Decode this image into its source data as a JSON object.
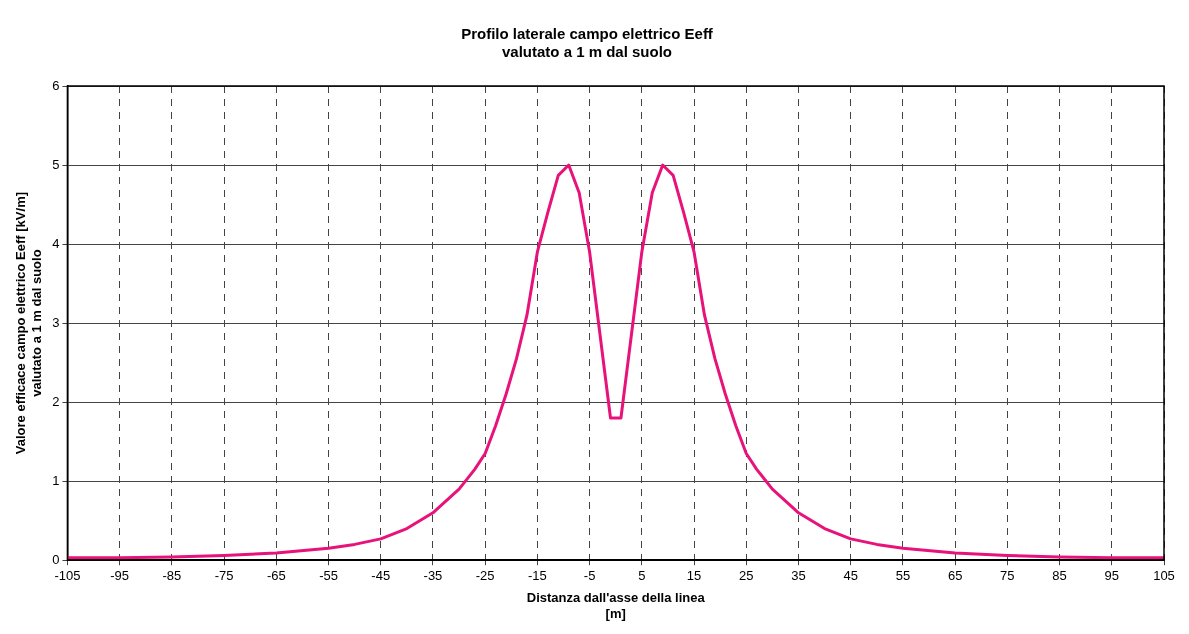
{
  "chart_data": {
    "type": "line",
    "title": "Profilo laterale campo elettrico Eeff\nvalutato a 1 m dal suolo",
    "xlabel": "Distanza dall'asse della linea\n[m]",
    "ylabel": "Valore efficace campo elettrico Eeff [kV/m]\nvalutato a 1 m dal suolo",
    "x": [
      -105,
      -95,
      -85,
      -75,
      -65,
      -55,
      -50,
      -45,
      -40,
      -35,
      -30,
      -27,
      -25,
      -23,
      -21,
      -19,
      -17,
      -15,
      -13,
      -11,
      -9,
      -7,
      -5,
      -1,
      1,
      5,
      7,
      9,
      11,
      13,
      15,
      17,
      19,
      21,
      23,
      25,
      27,
      30,
      35,
      40,
      45,
      50,
      55,
      65,
      75,
      85,
      95,
      105
    ],
    "series": [
      {
        "color": "#e8137a",
        "values": [
          0.03,
          0.03,
          0.04,
          0.06,
          0.09,
          0.15,
          0.2,
          0.27,
          0.4,
          0.6,
          0.9,
          1.15,
          1.35,
          1.7,
          2.1,
          2.55,
          3.1,
          3.9,
          4.4,
          4.87,
          5.0,
          4.65,
          3.9,
          1.8,
          1.8,
          3.9,
          4.65,
          5.0,
          4.87,
          4.4,
          3.9,
          3.1,
          2.55,
          2.1,
          1.7,
          1.35,
          1.15,
          0.9,
          0.6,
          0.4,
          0.27,
          0.2,
          0.15,
          0.09,
          0.06,
          0.04,
          0.03,
          0.03
        ]
      }
    ],
    "xlim": [
      -105,
      105
    ],
    "xticks": [
      -105,
      -95,
      -85,
      -75,
      -65,
      -55,
      -45,
      -35,
      -25,
      -15,
      -5,
      5,
      15,
      25,
      35,
      45,
      55,
      65,
      75,
      85,
      95,
      105
    ],
    "ylim": [
      0,
      6
    ],
    "yticks": [
      0,
      1,
      2,
      3,
      4,
      5,
      6
    ],
    "grid": true,
    "legend": false,
    "marker": "none",
    "line_style": "solid"
  }
}
